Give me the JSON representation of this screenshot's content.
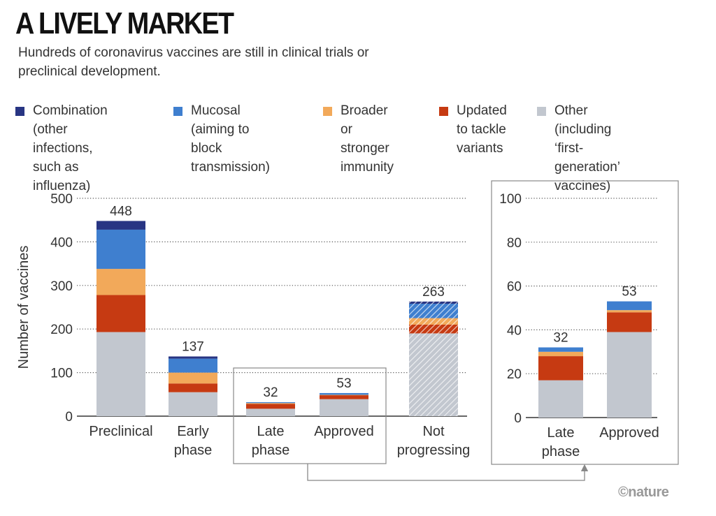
{
  "header": {
    "title": "A LIVELY MARKET",
    "subtitle": "Hundreds of coronavirus vaccines are still in clinical trials or preclinical development."
  },
  "legend": [
    {
      "label": "Combination\n(other infections,\nsuch as influenza)",
      "color": "#283583"
    },
    {
      "label": "Mucosal\n(aiming to block\ntransmission)",
      "color": "#3f7fcf"
    },
    {
      "label": "Broader\nor stronger\nimmunity",
      "color": "#f2a95a"
    },
    {
      "label": "Updated\nto tackle\nvariants",
      "color": "#c63a12"
    },
    {
      "label": "Other (including\n‘first-generation’\nvaccines)",
      "color": "#c2c7cf"
    }
  ],
  "credit": "©nature",
  "chart_data": [
    {
      "type": "bar",
      "stacked": true,
      "ylabel": "Number of vaccines",
      "ylim": [
        0,
        500
      ],
      "yticks": [
        0,
        100,
        200,
        300,
        400,
        500
      ],
      "grid": true,
      "categories": [
        "Preclinical",
        "Early\nphase",
        "Late\nphase",
        "Approved",
        "Not\nprogressing"
      ],
      "totals": [
        448,
        137,
        32,
        53,
        263
      ],
      "hatched_categories": [
        "Not\nprogressing"
      ],
      "series": [
        {
          "name": "Other (including ‘first-generation’ vaccines)",
          "color": "#c2c7cf",
          "values": [
            193,
            55,
            17,
            39,
            190
          ]
        },
        {
          "name": "Updated to tackle variants",
          "color": "#c63a12",
          "values": [
            85,
            20,
            11,
            9,
            20
          ]
        },
        {
          "name": "Broader or stronger immunity",
          "color": "#f2a95a",
          "values": [
            60,
            25,
            2,
            1,
            15
          ]
        },
        {
          "name": "Mucosal (aiming to block transmission)",
          "color": "#3f7fcf",
          "values": [
            90,
            32,
            2,
            4,
            33
          ]
        },
        {
          "name": "Combination (other infections, such as influenza)",
          "color": "#283583",
          "values": [
            20,
            5,
            0,
            0,
            5
          ]
        }
      ]
    },
    {
      "type": "bar",
      "stacked": true,
      "inset": true,
      "ylim": [
        0,
        100
      ],
      "yticks": [
        0,
        20,
        40,
        60,
        80,
        100
      ],
      "grid": true,
      "categories": [
        "Late\nphase",
        "Approved"
      ],
      "totals": [
        32,
        53
      ],
      "series": [
        {
          "name": "Other (including ‘first-generation’ vaccines)",
          "color": "#c2c7cf",
          "values": [
            17,
            39
          ]
        },
        {
          "name": "Updated to tackle variants",
          "color": "#c63a12",
          "values": [
            11,
            9
          ]
        },
        {
          "name": "Broader or stronger immunity",
          "color": "#f2a95a",
          "values": [
            2,
            1
          ]
        },
        {
          "name": "Mucosal (aiming to block transmission)",
          "color": "#3f7fcf",
          "values": [
            2,
            4
          ]
        },
        {
          "name": "Combination (other infections, such as influenza)",
          "color": "#283583",
          "values": [
            0,
            0
          ]
        }
      ]
    }
  ]
}
